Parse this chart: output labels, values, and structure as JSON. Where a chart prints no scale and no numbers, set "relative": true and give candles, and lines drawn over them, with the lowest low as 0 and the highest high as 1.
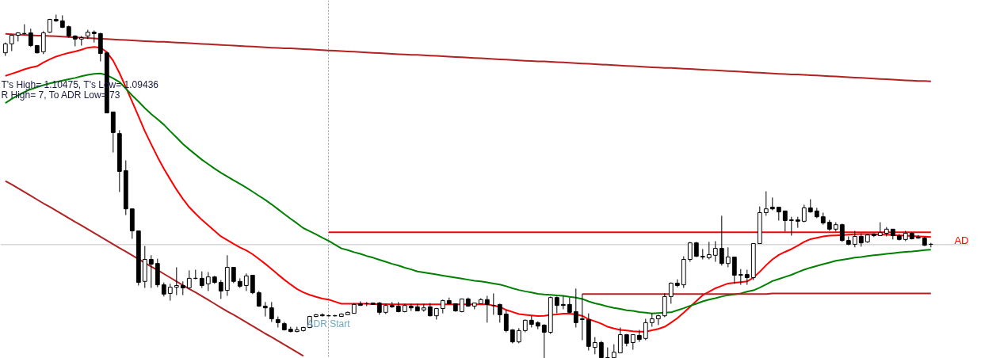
{
  "chart_data": {
    "type": "candlestick",
    "relative": true,
    "categories": [
      null,
      null,
      null,
      null,
      null,
      null,
      null,
      null,
      null,
      null,
      null,
      null,
      null,
      null,
      null,
      null,
      null,
      null,
      null,
      null,
      null,
      null,
      null,
      null,
      null,
      null,
      null,
      null,
      null,
      null,
      null,
      null,
      null,
      null,
      null,
      null,
      null,
      null,
      null,
      null,
      null,
      null,
      null,
      null,
      null,
      null,
      null,
      null,
      null,
      null,
      null,
      null,
      null,
      null,
      null,
      null,
      null,
      null,
      null,
      null,
      null,
      null,
      null,
      null,
      null,
      null,
      null,
      null,
      null,
      null,
      null,
      null,
      null,
      null,
      null,
      null,
      null,
      null,
      null,
      null,
      null,
      null,
      null,
      null,
      null,
      null,
      null,
      null,
      null,
      null,
      null,
      null,
      null,
      null,
      null,
      null,
      null,
      null,
      null,
      null,
      null,
      null,
      null,
      null,
      null,
      null,
      null,
      null,
      null,
      null,
      null,
      null,
      null,
      null,
      null,
      null,
      null,
      null,
      null,
      null,
      null,
      null,
      null,
      null,
      null,
      null,
      null,
      null,
      null,
      null,
      null,
      null,
      null,
      null,
      null,
      null,
      null,
      null,
      null,
      null,
      null,
      null,
      null,
      null,
      null,
      null,
      null
    ],
    "ohlc": [
      [
        0.889,
        0.919,
        0.88,
        0.915
      ],
      [
        0.915,
        0.942,
        0.894,
        0.94
      ],
      [
        0.94,
        0.949,
        0.922,
        0.947
      ],
      [
        0.945,
        0.972,
        0.942,
        0.945
      ],
      [
        0.947,
        0.959,
        0.906,
        0.91
      ],
      [
        0.91,
        0.912,
        0.887,
        0.889
      ],
      [
        0.892,
        0.952,
        0.885,
        0.947
      ],
      [
        0.949,
        0.988,
        0.947,
        0.986
      ],
      [
        0.986,
        1.0,
        0.979,
        0.982
      ],
      [
        0.982,
        0.998,
        0.961,
        0.963
      ],
      [
        0.965,
        0.968,
        0.933,
        0.938
      ],
      [
        0.938,
        0.94,
        0.908,
        0.929
      ],
      [
        0.929,
        0.938,
        0.91,
        0.933
      ],
      [
        0.938,
        0.956,
        0.929,
        0.949
      ],
      [
        0.949,
        0.954,
        0.919,
        0.945
      ],
      [
        0.945,
        0.947,
        0.864,
        0.887
      ],
      [
        0.889,
        0.892,
        0.714,
        0.714
      ],
      [
        0.717,
        0.717,
        0.599,
        0.657
      ],
      [
        0.654,
        0.664,
        0.484,
        0.544
      ],
      [
        0.546,
        0.576,
        0.417,
        0.435
      ],
      [
        0.435,
        0.435,
        0.348,
        0.371
      ],
      [
        0.371,
        0.371,
        0.212,
        0.221
      ],
      [
        0.224,
        0.327,
        0.205,
        0.288
      ],
      [
        0.288,
        0.3,
        0.205,
        0.274
      ],
      [
        0.276,
        0.29,
        0.207,
        0.214
      ],
      [
        0.214,
        0.221,
        0.18,
        0.187
      ],
      [
        0.189,
        0.217,
        0.168,
        0.207
      ],
      [
        0.207,
        0.265,
        0.184,
        0.212
      ],
      [
        0.212,
        0.224,
        0.184,
        0.205
      ],
      [
        0.205,
        0.256,
        0.203,
        0.233
      ],
      [
        0.233,
        0.258,
        0.23,
        0.233
      ],
      [
        0.233,
        0.253,
        0.205,
        0.212
      ],
      [
        0.217,
        0.251,
        0.196,
        0.237
      ],
      [
        0.237,
        0.24,
        0.217,
        0.221
      ],
      [
        0.221,
        0.228,
        0.173,
        0.196
      ],
      [
        0.198,
        0.3,
        0.182,
        0.265
      ],
      [
        0.265,
        0.265,
        0.219,
        0.224
      ],
      [
        0.224,
        0.233,
        0.205,
        0.21
      ],
      [
        0.212,
        0.247,
        0.196,
        0.24
      ],
      [
        0.242,
        0.242,
        0.187,
        0.191
      ],
      [
        0.191,
        0.196,
        0.15,
        0.152
      ],
      [
        0.152,
        0.164,
        0.122,
        0.147
      ],
      [
        0.147,
        0.164,
        0.106,
        0.115
      ],
      [
        0.113,
        0.122,
        0.09,
        0.104
      ],
      [
        0.101,
        0.106,
        0.081,
        0.083
      ],
      [
        0.085,
        0.092,
        0.076,
        0.078
      ],
      [
        0.078,
        0.092,
        0.076,
        0.083
      ],
      [
        0.081,
        0.092,
        0.078,
        0.09
      ],
      [
        0.09,
        0.124,
        0.088,
        0.122
      ],
      [
        0.122,
        0.129,
        0.12,
        0.127
      ],
      [
        0.127,
        0.131,
        0.122,
        0.124
      ],
      [
        0.124,
        0.127,
        0.122,
        0.124
      ],
      [
        0.124,
        0.127,
        0.122,
        0.124
      ],
      [
        0.122,
        0.131,
        0.122,
        0.129
      ],
      [
        0.127,
        0.136,
        0.127,
        0.134
      ],
      [
        0.131,
        0.161,
        0.131,
        0.157
      ],
      [
        0.159,
        0.166,
        0.154,
        0.154
      ],
      [
        0.159,
        0.164,
        0.152,
        0.159
      ],
      [
        0.161,
        0.161,
        0.157,
        0.157
      ],
      [
        0.161,
        0.164,
        0.127,
        0.134
      ],
      [
        0.134,
        0.159,
        0.129,
        0.154
      ],
      [
        0.154,
        0.164,
        0.147,
        0.15
      ],
      [
        0.152,
        0.164,
        0.134,
        0.136
      ],
      [
        0.136,
        0.159,
        0.134,
        0.154
      ],
      [
        0.152,
        0.159,
        0.138,
        0.147
      ],
      [
        0.15,
        0.159,
        0.138,
        0.138
      ],
      [
        0.141,
        0.159,
        0.136,
        0.147
      ],
      [
        0.15,
        0.161,
        0.122,
        0.124
      ],
      [
        0.124,
        0.147,
        0.113,
        0.145
      ],
      [
        0.145,
        0.171,
        0.131,
        0.168
      ],
      [
        0.168,
        0.177,
        0.157,
        0.159
      ],
      [
        0.159,
        0.159,
        0.136,
        0.138
      ],
      [
        0.136,
        0.173,
        0.134,
        0.173
      ],
      [
        0.173,
        0.177,
        0.15,
        0.152
      ],
      [
        0.152,
        0.161,
        0.143,
        0.161
      ],
      [
        0.159,
        0.175,
        0.159,
        0.171
      ],
      [
        0.171,
        0.182,
        0.104,
        0.157
      ],
      [
        0.154,
        0.189,
        0.127,
        0.154
      ],
      [
        0.157,
        0.159,
        0.104,
        0.127
      ],
      [
        0.129,
        0.141,
        0.076,
        0.081
      ],
      [
        0.083,
        0.085,
        0.044,
        0.048
      ],
      [
        0.048,
        0.088,
        0.044,
        0.081
      ],
      [
        0.081,
        0.113,
        0.076,
        0.111
      ],
      [
        0.111,
        0.124,
        0.09,
        0.099
      ],
      [
        0.104,
        0.108,
        0.085,
        0.094
      ],
      [
        0.097,
        0.099,
        0.0,
        0.076
      ],
      [
        0.076,
        0.18,
        0.071,
        0.177
      ],
      [
        0.177,
        0.18,
        0.131,
        0.154
      ],
      [
        0.157,
        0.182,
        0.143,
        0.154
      ],
      [
        0.157,
        0.177,
        0.131,
        0.134
      ],
      [
        0.136,
        0.203,
        0.09,
        0.104
      ],
      [
        0.115,
        0.187,
        0.053,
        0.113
      ],
      [
        0.113,
        0.131,
        0.023,
        0.035
      ],
      [
        0.032,
        0.062,
        0.012,
        0.046
      ],
      [
        0.046,
        0.051,
        0.0,
        0.002
      ],
      [
        0.002,
        0.032,
        0.0,
        0.002
      ],
      [
        0.002,
        0.041,
        0.0,
        0.018
      ],
      [
        0.016,
        0.09,
        0.016,
        0.069
      ],
      [
        0.069,
        0.071,
        0.035,
        0.044
      ],
      [
        0.046,
        0.069,
        0.025,
        0.069
      ],
      [
        0.067,
        0.083,
        0.048,
        0.055
      ],
      [
        0.058,
        0.115,
        0.053,
        0.104
      ],
      [
        0.104,
        0.131,
        0.092,
        0.115
      ],
      [
        0.115,
        0.127,
        0.097,
        0.124
      ],
      [
        0.124,
        0.189,
        0.12,
        0.18
      ],
      [
        0.18,
        0.221,
        0.159,
        0.219
      ],
      [
        0.219,
        0.23,
        0.207,
        0.212
      ],
      [
        0.214,
        0.297,
        0.205,
        0.288
      ],
      [
        0.288,
        0.339,
        0.281,
        0.336
      ],
      [
        0.336,
        0.339,
        0.295,
        0.297
      ],
      [
        0.297,
        0.318,
        0.288,
        0.295
      ],
      [
        0.293,
        0.339,
        0.288,
        0.302
      ],
      [
        0.3,
        0.341,
        0.281,
        0.32
      ],
      [
        0.32,
        0.415,
        0.27,
        0.276
      ],
      [
        0.276,
        0.323,
        0.265,
        0.295
      ],
      [
        0.295,
        0.295,
        0.217,
        0.242
      ],
      [
        0.242,
        0.26,
        0.214,
        0.244
      ],
      [
        0.244,
        0.258,
        0.214,
        0.235
      ],
      [
        0.235,
        0.334,
        0.228,
        0.334
      ],
      [
        0.334,
        0.442,
        0.334,
        0.424
      ],
      [
        0.424,
        0.486,
        0.415,
        0.435
      ],
      [
        0.44,
        0.468,
        0.431,
        0.435
      ],
      [
        0.44,
        0.44,
        0.401,
        0.426
      ],
      [
        0.429,
        0.429,
        0.369,
        0.401
      ],
      [
        0.403,
        0.412,
        0.357,
        0.401
      ],
      [
        0.403,
        0.412,
        0.38,
        0.399
      ],
      [
        0.399,
        0.447,
        0.396,
        0.438
      ],
      [
        0.438,
        0.463,
        0.424,
        0.426
      ],
      [
        0.429,
        0.438,
        0.408,
        0.412
      ],
      [
        0.412,
        0.424,
        0.389,
        0.394
      ],
      [
        0.396,
        0.403,
        0.371,
        0.376
      ],
      [
        0.376,
        0.396,
        0.369,
        0.389
      ],
      [
        0.389,
        0.392,
        0.339,
        0.343
      ],
      [
        0.343,
        0.355,
        0.329,
        0.332
      ],
      [
        0.332,
        0.371,
        0.323,
        0.355
      ],
      [
        0.355,
        0.364,
        0.325,
        0.336
      ],
      [
        0.339,
        0.362,
        0.336,
        0.359
      ],
      [
        0.362,
        0.364,
        0.353,
        0.357
      ],
      [
        0.357,
        0.396,
        0.357,
        0.366
      ],
      [
        0.364,
        0.382,
        0.355,
        0.376
      ],
      [
        0.376,
        0.376,
        0.346,
        0.357
      ],
      [
        0.357,
        0.362,
        0.343,
        0.346
      ],
      [
        0.346,
        0.371,
        0.341,
        0.364
      ],
      [
        0.364,
        0.366,
        0.346,
        0.348
      ],
      [
        0.353,
        0.359,
        0.348,
        0.35
      ],
      [
        0.35,
        0.353,
        0.327,
        0.329
      ],
      [
        0.332,
        0.336,
        0.323,
        0.332
      ]
    ],
    "series": [
      {
        "type": "line",
        "color": "#ff0000",
        "values": [
          0.822,
          0.828,
          0.834,
          0.841,
          0.846,
          0.85,
          0.861,
          0.87,
          0.878,
          0.884,
          0.889,
          0.893,
          0.898,
          0.904,
          0.906,
          0.904,
          0.891,
          0.866,
          0.83,
          0.789,
          0.747,
          0.704,
          0.661,
          0.623,
          0.586,
          0.552,
          0.521,
          0.491,
          0.464,
          0.44,
          0.421,
          0.403,
          0.387,
          0.371,
          0.355,
          0.344,
          0.333,
          0.323,
          0.314,
          0.303,
          0.289,
          0.275,
          0.26,
          0.244,
          0.229,
          0.215,
          0.202,
          0.192,
          0.185,
          0.179,
          0.174,
          0.171,
          0.165,
          0.159,
          0.159,
          0.159,
          0.159,
          0.159,
          0.158,
          0.158,
          0.158,
          0.157,
          0.157,
          0.157,
          0.157,
          0.157,
          0.157,
          0.157,
          0.157,
          0.157,
          0.157,
          0.157,
          0.157,
          0.157,
          0.157,
          0.157,
          0.157,
          0.154,
          0.15,
          0.141,
          0.135,
          0.129,
          0.127,
          0.125,
          0.123,
          0.124,
          0.127,
          0.128,
          0.13,
          0.13,
          0.128,
          0.124,
          0.114,
          0.108,
          0.101,
          0.092,
          0.087,
          0.083,
          0.081,
          0.079,
          0.078,
          0.078,
          0.082,
          0.086,
          0.092,
          0.104,
          0.117,
          0.133,
          0.15,
          0.167,
          0.184,
          0.194,
          0.204,
          0.211,
          0.218,
          0.22,
          0.222,
          0.224,
          0.235,
          0.252,
          0.271,
          0.288,
          0.301,
          0.31,
          0.318,
          0.328,
          0.339,
          0.347,
          0.351,
          0.355,
          0.357,
          0.358,
          0.359,
          0.36,
          0.361,
          0.362,
          0.362,
          0.361,
          0.36,
          0.36,
          0.359,
          0.358,
          0.357,
          0.356,
          0.355,
          0.354,
          0.353
        ]
      },
      {
        "type": "line",
        "color": "#008000",
        "values": [
          0.743,
          0.755,
          0.765,
          0.775,
          0.783,
          0.789,
          0.795,
          0.8,
          0.804,
          0.808,
          0.812,
          0.816,
          0.821,
          0.825,
          0.828,
          0.829,
          0.824,
          0.815,
          0.804,
          0.785,
          0.765,
          0.747,
          0.728,
          0.711,
          0.696,
          0.68,
          0.661,
          0.643,
          0.624,
          0.608,
          0.593,
          0.578,
          0.565,
          0.552,
          0.54,
          0.529,
          0.518,
          0.508,
          0.497,
          0.485,
          0.473,
          0.461,
          0.448,
          0.434,
          0.42,
          0.406,
          0.393,
          0.379,
          0.37,
          0.361,
          0.351,
          0.342,
          0.331,
          0.32,
          0.315,
          0.309,
          0.304,
          0.298,
          0.293,
          0.287,
          0.281,
          0.275,
          0.27,
          0.264,
          0.259,
          0.253,
          0.25,
          0.247,
          0.244,
          0.241,
          0.238,
          0.235,
          0.232,
          0.229,
          0.226,
          0.224,
          0.221,
          0.218,
          0.215,
          0.21,
          0.204,
          0.199,
          0.195,
          0.192,
          0.188,
          0.186,
          0.185,
          0.183,
          0.182,
          0.179,
          0.177,
          0.173,
          0.166,
          0.16,
          0.156,
          0.151,
          0.147,
          0.144,
          0.14,
          0.138,
          0.135,
          0.133,
          0.131,
          0.132,
          0.133,
          0.134,
          0.14,
          0.146,
          0.153,
          0.159,
          0.166,
          0.171,
          0.175,
          0.18,
          0.184,
          0.186,
          0.189,
          0.194,
          0.198,
          0.206,
          0.215,
          0.225,
          0.231,
          0.237,
          0.243,
          0.251,
          0.258,
          0.264,
          0.269,
          0.274,
          0.279,
          0.284,
          0.287,
          0.29,
          0.293,
          0.295,
          0.298,
          0.3,
          0.302,
          0.304,
          0.306,
          0.308,
          0.31,
          0.311,
          0.313,
          0.315,
          0.316
        ]
      },
      {
        "type": "line",
        "color": "#b22222",
        "values": [
          0.944,
          0.943,
          0.942,
          0.941,
          0.94,
          0.939,
          0.939,
          0.938,
          0.937,
          0.936,
          0.935,
          0.934,
          0.933,
          0.932,
          0.931,
          0.93,
          0.929,
          0.928,
          0.927,
          0.926,
          0.925,
          0.924,
          0.923,
          0.922,
          0.921,
          0.921,
          0.92,
          0.919,
          0.918,
          0.917,
          0.916,
          0.915,
          0.914,
          0.913,
          0.912,
          0.911,
          0.91,
          0.909,
          0.908,
          0.907,
          0.906,
          0.905,
          0.904,
          0.903,
          0.902,
          0.902,
          0.901,
          0.9,
          0.899,
          0.898,
          0.897,
          0.896,
          0.895,
          0.894,
          0.893,
          0.892,
          0.891,
          0.89,
          0.889,
          0.888,
          0.887,
          0.886,
          0.885,
          0.884,
          0.883,
          0.883,
          0.882,
          0.881,
          0.88,
          0.879,
          0.878,
          0.877,
          0.876,
          0.875,
          0.874,
          0.873,
          0.872,
          0.871,
          0.87,
          0.869,
          0.868,
          0.867,
          0.866,
          0.865,
          0.864,
          0.864,
          0.863,
          0.862,
          0.861,
          0.86,
          0.859,
          0.858,
          0.857,
          0.856,
          0.855,
          0.854,
          0.853,
          0.852,
          0.851,
          0.85,
          0.849,
          0.848,
          0.847,
          0.846,
          0.845,
          0.845,
          0.844,
          0.843,
          0.842,
          0.841,
          0.84,
          0.839,
          0.838,
          0.837,
          0.836,
          0.835,
          0.834,
          0.833,
          0.832,
          0.831,
          0.83,
          0.829,
          0.828,
          0.827,
          0.826,
          0.826,
          0.825,
          0.824,
          0.823,
          0.822,
          0.821,
          0.82,
          0.819,
          0.818,
          0.817,
          0.816,
          0.815,
          0.814,
          0.813,
          0.812,
          0.811,
          0.81,
          0.809,
          0.808,
          0.807,
          0.807,
          0.806
        ]
      },
      {
        "type": "line",
        "color": "#b22222",
        "values": [
          0.516,
          0.506,
          0.495,
          0.484,
          0.473,
          0.462,
          0.451,
          0.441,
          0.43,
          0.419,
          0.408,
          0.397,
          0.387,
          0.376,
          0.365,
          0.354,
          0.343,
          0.332,
          0.321,
          0.311,
          0.3,
          0.289,
          0.278,
          0.267,
          0.257,
          0.246,
          0.235,
          0.224,
          0.213,
          0.202,
          0.192,
          0.181,
          0.17,
          0.159,
          0.148,
          0.137,
          0.127,
          0.116,
          0.105,
          0.094,
          0.083,
          0.072,
          0.062,
          0.051,
          0.04,
          0.029,
          0.018,
          0.007,
          null,
          null,
          null,
          null,
          null,
          null,
          null,
          null,
          null,
          null,
          null,
          null,
          null,
          null,
          null,
          null,
          null,
          null,
          null,
          null,
          null,
          null,
          null,
          null,
          null,
          null,
          null,
          null,
          null,
          null,
          null,
          null,
          null,
          null,
          null,
          null,
          null,
          null,
          null,
          null,
          null,
          null,
          null,
          null,
          null,
          null,
          null,
          null,
          null,
          null,
          null,
          null,
          null,
          null,
          null,
          null,
          null,
          null,
          null,
          null,
          null,
          null,
          null,
          null,
          null,
          null,
          null,
          null,
          null,
          null,
          null,
          null,
          null,
          null,
          null,
          null,
          null,
          null,
          null,
          null,
          null,
          null,
          null,
          null,
          null,
          null,
          null,
          null,
          null,
          null,
          null,
          null,
          null,
          null,
          null,
          null,
          null,
          null,
          null
        ]
      },
      {
        "type": "line",
        "color": "#b22222",
        "values": [
          null,
          null,
          null,
          null,
          null,
          null,
          null,
          null,
          null,
          null,
          null,
          null,
          null,
          null,
          null,
          null,
          null,
          null,
          null,
          null,
          null,
          null,
          null,
          null,
          null,
          null,
          null,
          null,
          null,
          null,
          null,
          null,
          null,
          null,
          null,
          null,
          null,
          null,
          null,
          null,
          null,
          null,
          null,
          null,
          null,
          null,
          null,
          null,
          null,
          null,
          null,
          null,
          null,
          null,
          null,
          null,
          null,
          null,
          null,
          null,
          null,
          null,
          null,
          null,
          null,
          null,
          null,
          null,
          null,
          null,
          null,
          null,
          null,
          null,
          null,
          null,
          null,
          null,
          null,
          null,
          null,
          null,
          null,
          null,
          null,
          null,
          null,
          null,
          null,
          null,
          null,
          0.187,
          0.187,
          0.187,
          0.187,
          0.187,
          0.187,
          0.187,
          0.187,
          0.187,
          0.187,
          0.187,
          0.187,
          0.187,
          0.187,
          0.187,
          0.187,
          0.187,
          0.187,
          0.187,
          0.187,
          0.187,
          0.187,
          0.187,
          0.187,
          0.187,
          0.187,
          0.187,
          0.187,
          0.187,
          0.187,
          0.189,
          0.189,
          0.189,
          0.189,
          0.189,
          0.189,
          0.189,
          0.189,
          0.189,
          0.189,
          0.189,
          0.189,
          0.189,
          0.189,
          0.189,
          0.189,
          0.189,
          0.189,
          0.189,
          0.189,
          0.189,
          0.189,
          0.189,
          0.189,
          0.189,
          0.189
        ]
      },
      {
        "type": "line",
        "name": "AD",
        "color": "#ff0000",
        "values": [
          null,
          null,
          null,
          null,
          null,
          null,
          null,
          null,
          null,
          null,
          null,
          null,
          null,
          null,
          null,
          null,
          null,
          null,
          null,
          null,
          null,
          null,
          null,
          null,
          null,
          null,
          null,
          null,
          null,
          null,
          null,
          null,
          null,
          null,
          null,
          null,
          null,
          null,
          null,
          null,
          null,
          null,
          null,
          null,
          null,
          null,
          null,
          null,
          null,
          null,
          null,
          0.367,
          0.367,
          0.367,
          0.367,
          0.367,
          0.367,
          0.367,
          0.367,
          0.367,
          0.367,
          0.367,
          0.367,
          0.367,
          0.367,
          0.367,
          0.367,
          0.367,
          0.367,
          0.367,
          0.367,
          0.367,
          0.367,
          0.367,
          0.367,
          0.367,
          0.367,
          0.367,
          0.367,
          0.367,
          0.367,
          0.367,
          0.367,
          0.367,
          0.367,
          0.367,
          0.367,
          0.367,
          0.367,
          0.367,
          0.367,
          0.367,
          0.367,
          0.367,
          0.367,
          0.367,
          0.367,
          0.367,
          0.367,
          0.367,
          0.367,
          0.367,
          0.367,
          0.367,
          0.367,
          0.367,
          0.367,
          0.367,
          0.367,
          0.367,
          0.367,
          0.367,
          0.367,
          0.367,
          0.367,
          0.367,
          0.367,
          0.367,
          0.367,
          0.367,
          0.367,
          0.367,
          0.367,
          0.367,
          0.367,
          0.367,
          0.367,
          0.367,
          0.367,
          0.367,
          0.367,
          0.367,
          0.367,
          0.367,
          0.367,
          0.367,
          0.367,
          0.367,
          0.367,
          0.367,
          0.367,
          0.367,
          0.367,
          0.367,
          0.367,
          0.367,
          0.367
        ]
      }
    ],
    "ref_lines": [
      {
        "axis": "y",
        "value": 0.331,
        "color": "#c0c0c0"
      }
    ],
    "annotations": [
      "T's High= 1.10475, T's Low= 1.09436",
      "R High= 7, To ADR Low= 73",
      "ADR Start"
    ]
  }
}
